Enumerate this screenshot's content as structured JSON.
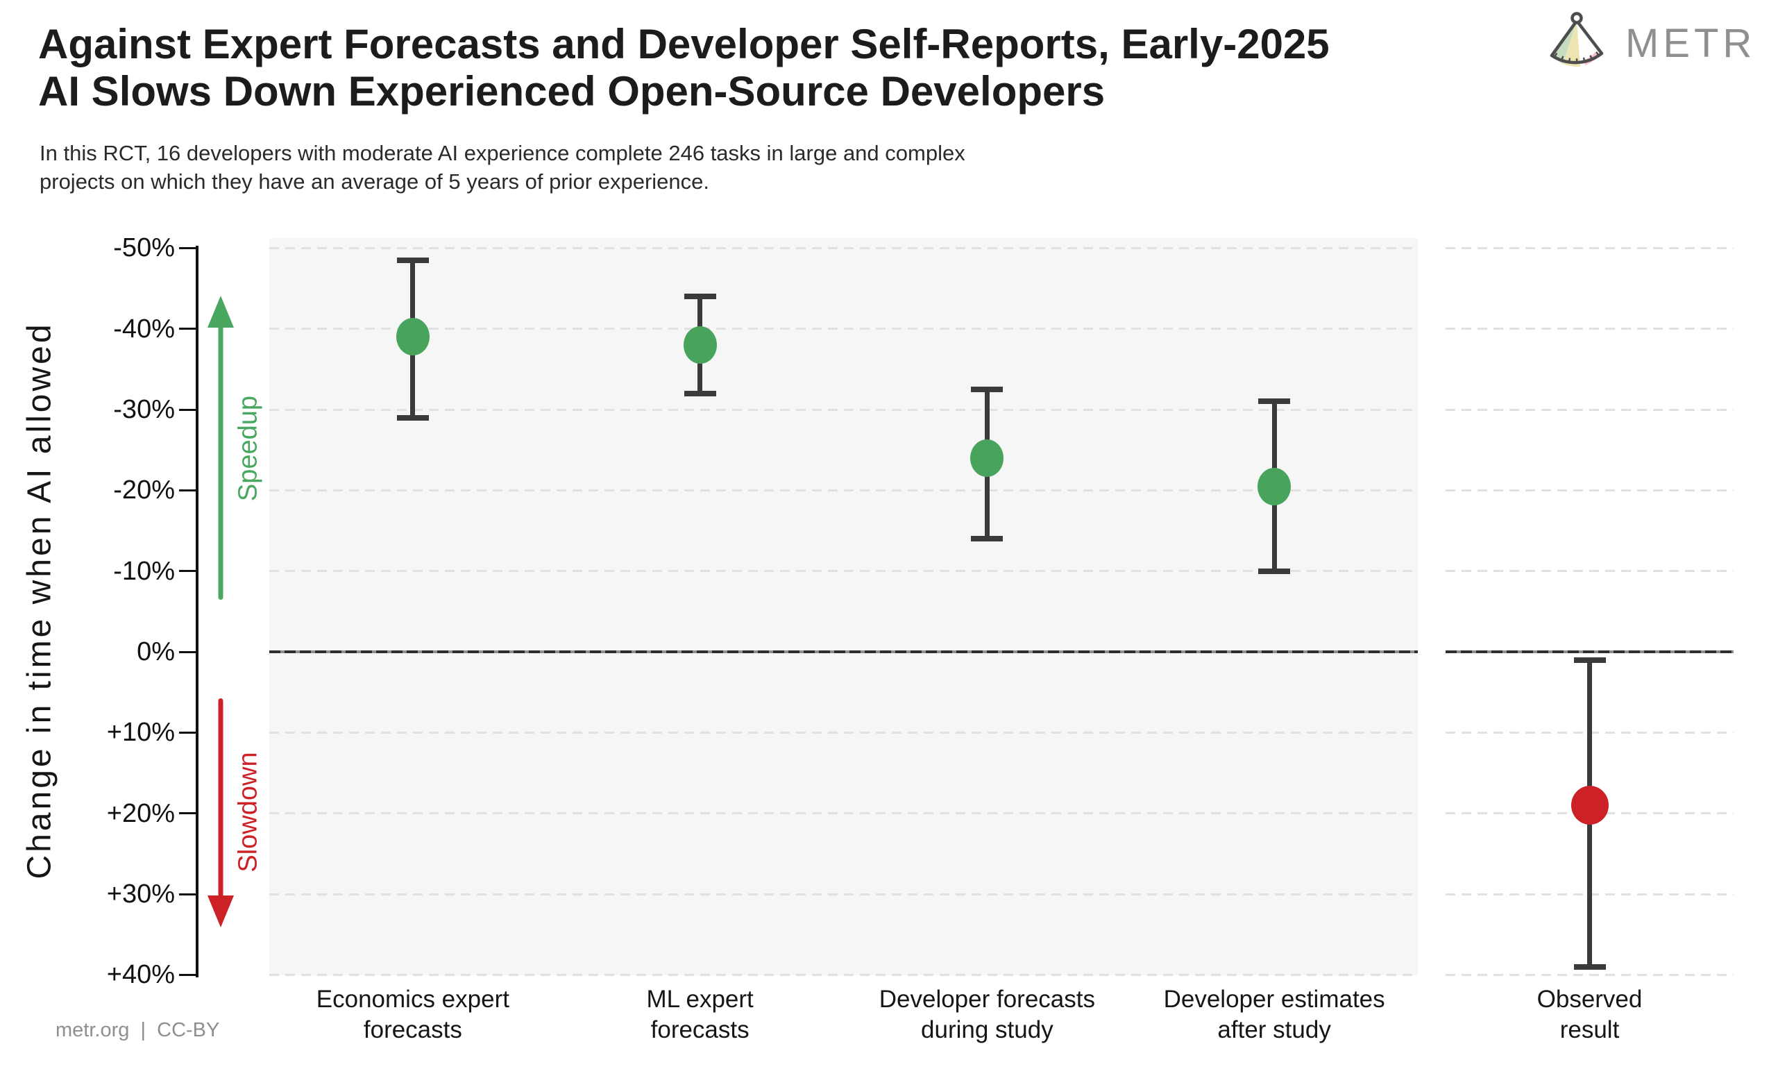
{
  "header": {
    "title_line1": "Against Expert Forecasts and Developer Self-Reports, Early-2025",
    "title_line2": "AI Slows Down Experienced Open-Source Developers",
    "subtitle_line1": "In this RCT, 16 developers with moderate AI experience complete 246 tasks in large and complex",
    "subtitle_line2": "projects on which they have an average of 5 years of prior experience.",
    "brand": "METR"
  },
  "footer": {
    "credit": "metr.org  |  CC-BY"
  },
  "chart_data": {
    "type": "scatter",
    "title": "Against Expert Forecasts and Developer Self-Reports, Early-2025 AI Slows Down Experienced Open-Source Developers",
    "ylabel": "Change in time when AI allowed",
    "y_axis": {
      "tick_labels": [
        "-50%",
        "-40%",
        "-30%",
        "-20%",
        "-10%",
        "0%",
        "+10%",
        "+20%",
        "+30%",
        "+40%"
      ],
      "tick_values": [
        -50,
        -40,
        -30,
        -20,
        -10,
        0,
        10,
        20,
        30,
        40
      ],
      "ylim": [
        -50,
        40
      ],
      "orientation": "negative values (speedup) plotted upward",
      "grid": "dashed horizontal, zero line emphasized"
    },
    "annotations": {
      "speedup": {
        "label": "Speedup",
        "color": "#4aa75f",
        "direction": "up"
      },
      "slowdown": {
        "label": "Slowdown",
        "color": "#cc2127",
        "direction": "down"
      }
    },
    "errorbar_color": "#3a3a3a",
    "zero_line_value": 0,
    "series": [
      {
        "panel": "main",
        "category_line1": "Economics expert",
        "category_line2": "forecasts",
        "mean": -39,
        "ci_low": -48.5,
        "ci_high": -29,
        "color": "#48a45c"
      },
      {
        "panel": "main",
        "category_line1": "ML expert",
        "category_line2": "forecasts",
        "mean": -38,
        "ci_low": -44,
        "ci_high": -32,
        "color": "#48a45c"
      },
      {
        "panel": "main",
        "category_line1": "Developer forecasts",
        "category_line2": "during study",
        "mean": -24,
        "ci_low": -32.5,
        "ci_high": -14,
        "color": "#48a45c"
      },
      {
        "panel": "main",
        "category_line1": "Developer estimates",
        "category_line2": "after study",
        "mean": -20.5,
        "ci_low": -31,
        "ci_high": -10,
        "color": "#48a45c"
      },
      {
        "panel": "observed",
        "category_line1": "Observed",
        "category_line2": "result",
        "mean": 19,
        "ci_low": 1,
        "ci_high": 39,
        "color": "#cb2127"
      }
    ]
  }
}
